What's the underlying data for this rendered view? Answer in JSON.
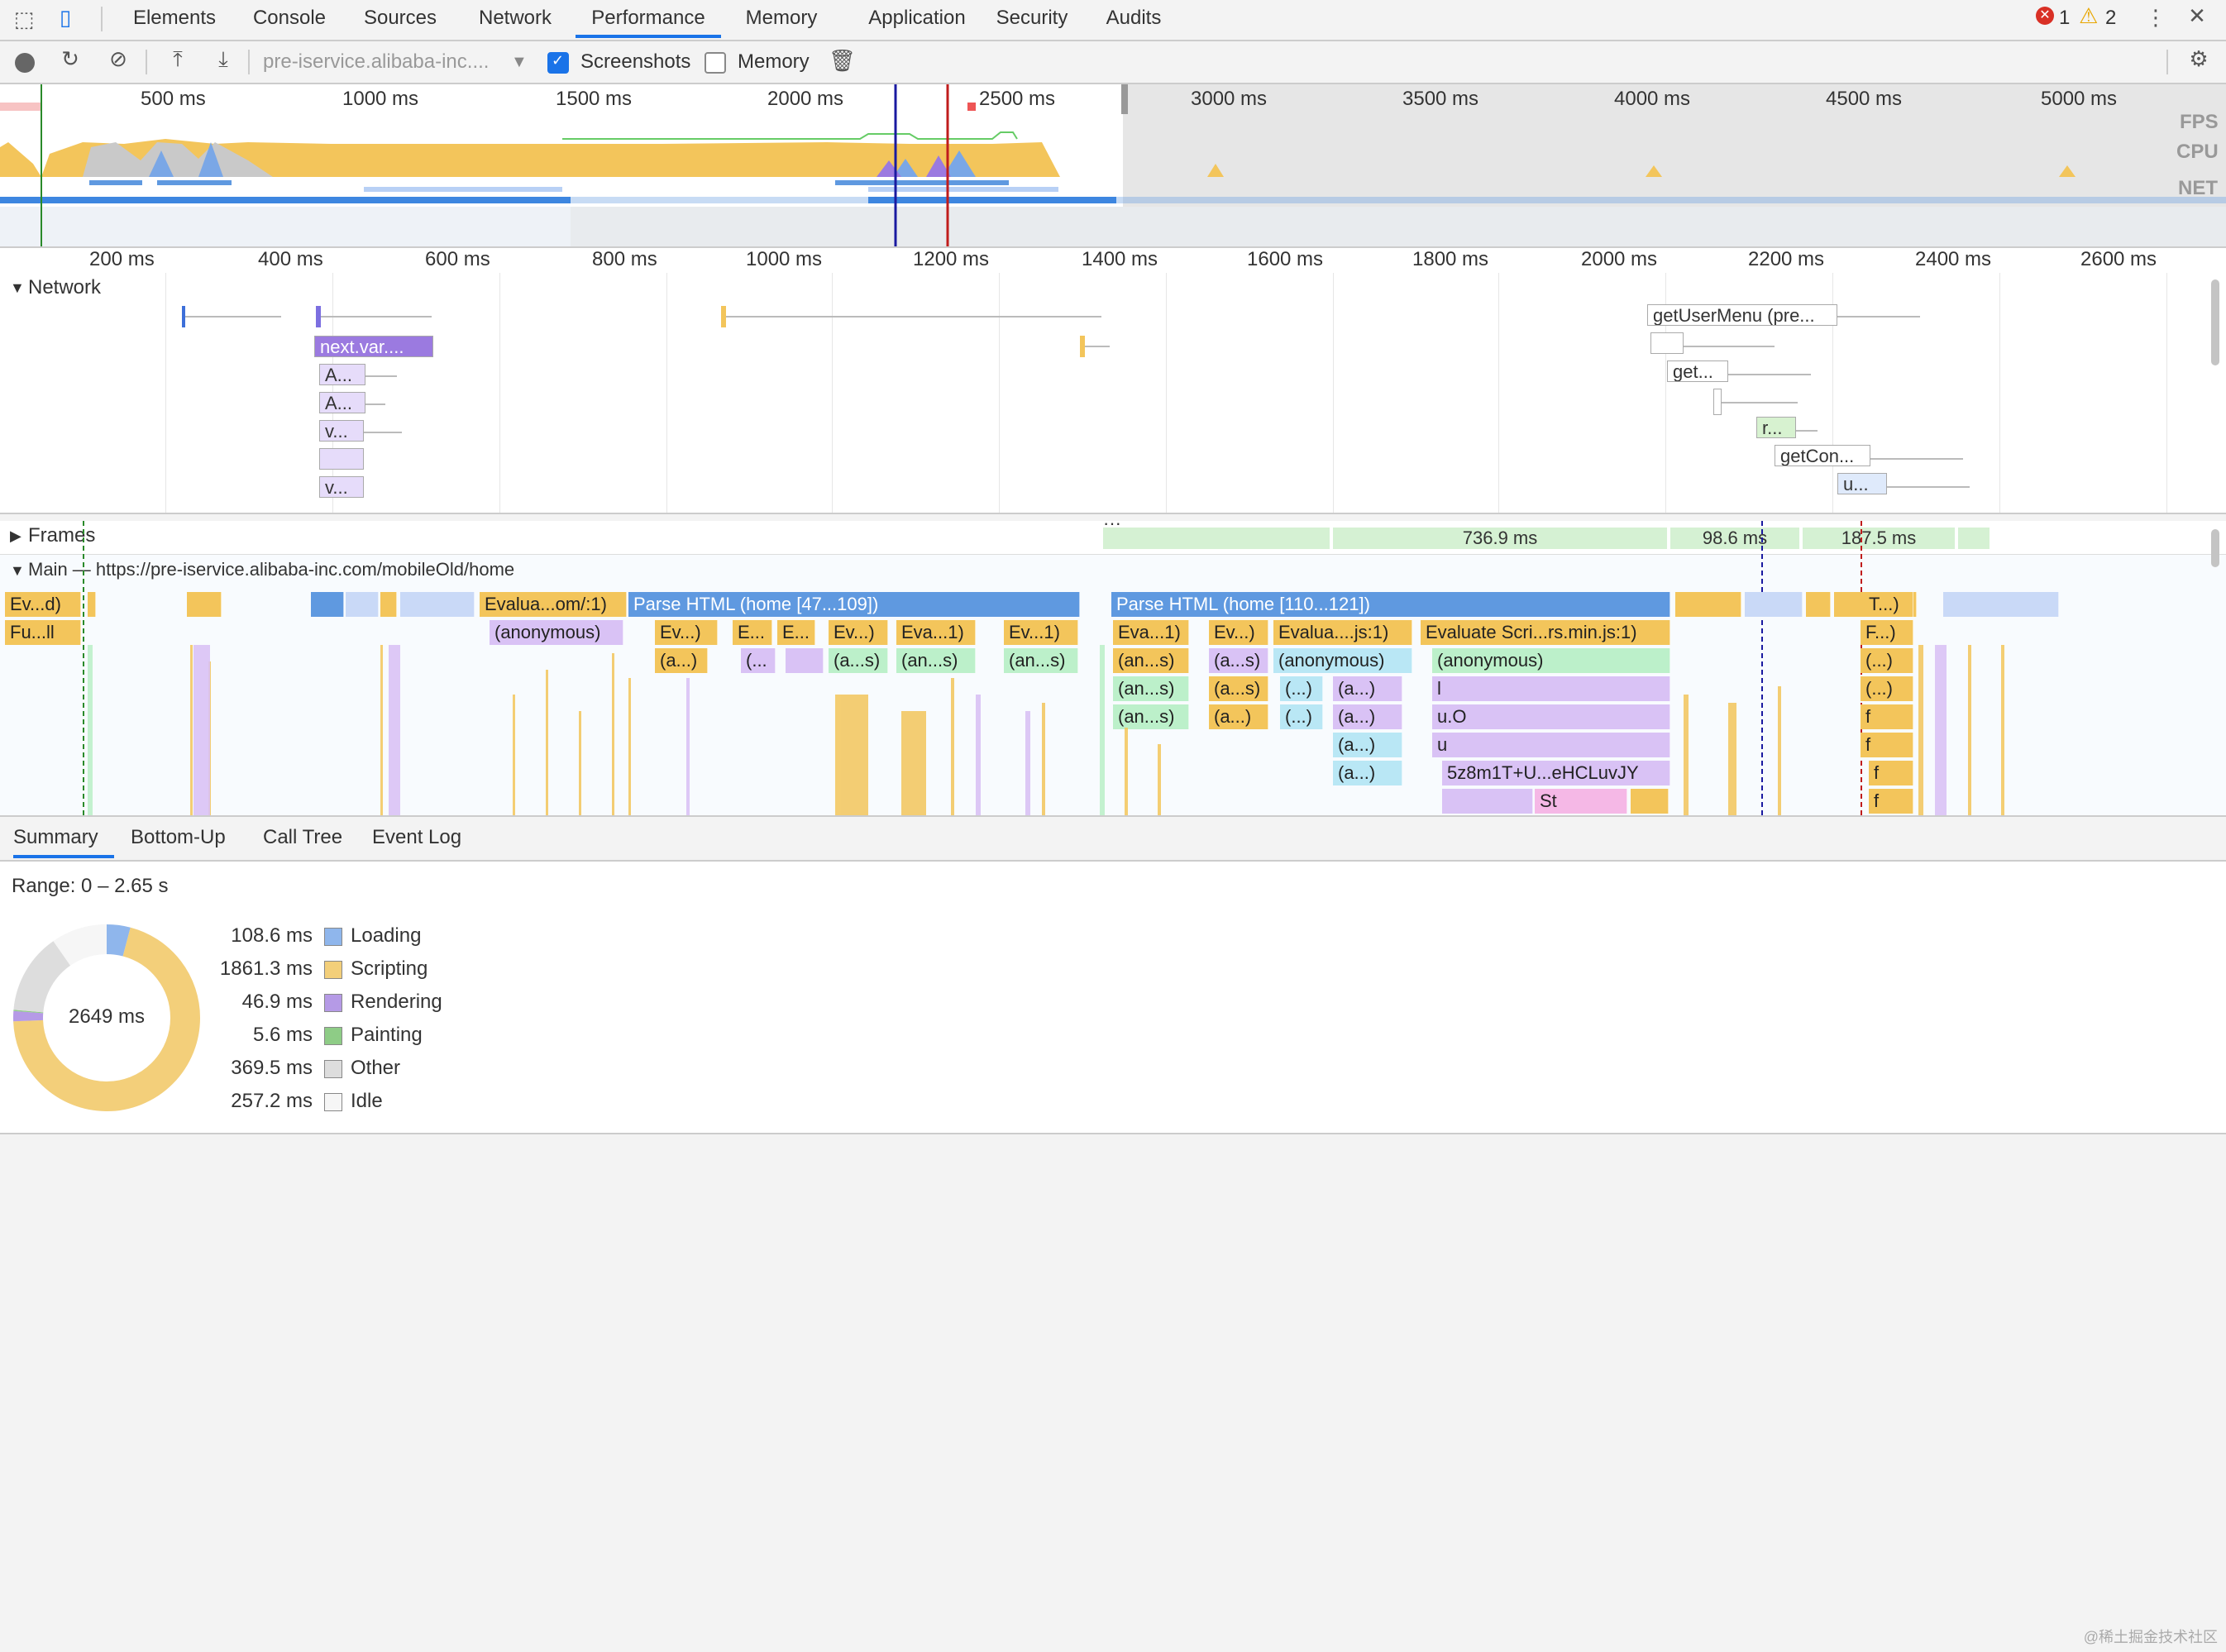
{
  "tabs": [
    "Elements",
    "Console",
    "Sources",
    "Network",
    "Performance",
    "Memory",
    "Application",
    "Security",
    "Audits"
  ],
  "active_tab": "Performance",
  "status": {
    "errors": "1",
    "warnings": "2"
  },
  "toolbar": {
    "profile_select": "pre-iservice.alibaba-inc....",
    "screenshots_label": "Screenshots",
    "memory_label": "Memory"
  },
  "overview": {
    "ticks": [
      "500 ms",
      "1000 ms",
      "1500 ms",
      "2000 ms",
      "2500 ms",
      "3000 ms",
      "3500 ms",
      "4000 ms",
      "4500 ms",
      "5000 ms"
    ],
    "side_labels": [
      "FPS",
      "CPU",
      "NET"
    ]
  },
  "detail_ruler": [
    "200 ms",
    "400 ms",
    "600 ms",
    "800 ms",
    "1000 ms",
    "1200 ms",
    "1400 ms",
    "1600 ms",
    "1800 ms",
    "2000 ms",
    "2200 ms",
    "2400 ms",
    "2600 ms"
  ],
  "network": {
    "title": "Network",
    "requests": [
      "next.var....",
      "A...",
      "A...",
      "v...",
      "v...",
      "getUserMenu (pre...",
      "get...",
      "r...",
      "getCon...",
      "u..."
    ]
  },
  "frames": {
    "title": "Frames",
    "values": [
      "736.9 ms",
      "98.6 ms",
      "187.5 ms"
    ]
  },
  "main": {
    "title": "Main — https://pre-iservice.alibaba-inc.com/mobileOld/home",
    "row1": [
      "Ev...d)",
      "Evalua...om/:1)",
      "Parse HTML (home [47...109])",
      "Parse HTML (home [110...121])",
      "T...)"
    ],
    "row2": [
      "Fu...ll",
      "(anonymous)",
      "Ev...)",
      "E...",
      "E...",
      "Ev...)",
      "Eva...1)",
      "Ev...1)",
      "Eva...1)",
      "Ev...)",
      "Evalua....js:1)",
      "Evaluate Scri...rs.min.js:1)",
      "F...)"
    ],
    "row3": [
      "(a...)",
      "(...",
      "(a...s)",
      "(an...s)",
      "(an...s)",
      "(an...s)",
      "(a...s)",
      "(anonymous)",
      "(anonymous)",
      "(...)"
    ],
    "row4": [
      "(an...s)",
      "(a...s)",
      "(...)",
      "(a...)",
      "l",
      "(...)"
    ],
    "row5": [
      "(an...s)",
      "(a...)",
      "(...)",
      "(a...)",
      "u.O",
      "f"
    ],
    "row6": [
      "(a...)",
      "u",
      "f"
    ],
    "row7": [
      "(a...)",
      "5z8m1T+U...eHCLuvJY",
      "f"
    ],
    "row8": [
      "St",
      "f"
    ]
  },
  "bottom_tabs": [
    "Summary",
    "Bottom-Up",
    "Call Tree",
    "Event Log"
  ],
  "summary": {
    "range": "Range: 0 – 2.65 s",
    "total": "2649 ms",
    "items": [
      {
        "ms": "108.6 ms",
        "label": "Loading",
        "color": "#8fb6ec"
      },
      {
        "ms": "1861.3 ms",
        "label": "Scripting",
        "color": "#f3cf7a"
      },
      {
        "ms": "46.9 ms",
        "label": "Rendering",
        "color": "#b59ae6"
      },
      {
        "ms": "5.6 ms",
        "label": "Painting",
        "color": "#8ecc86"
      },
      {
        "ms": "369.5 ms",
        "label": "Other",
        "color": "#dddddd"
      },
      {
        "ms": "257.2 ms",
        "label": "Idle",
        "color": "#f6f6f6"
      }
    ]
  },
  "watermark": "@稀土掘金技术社区"
}
